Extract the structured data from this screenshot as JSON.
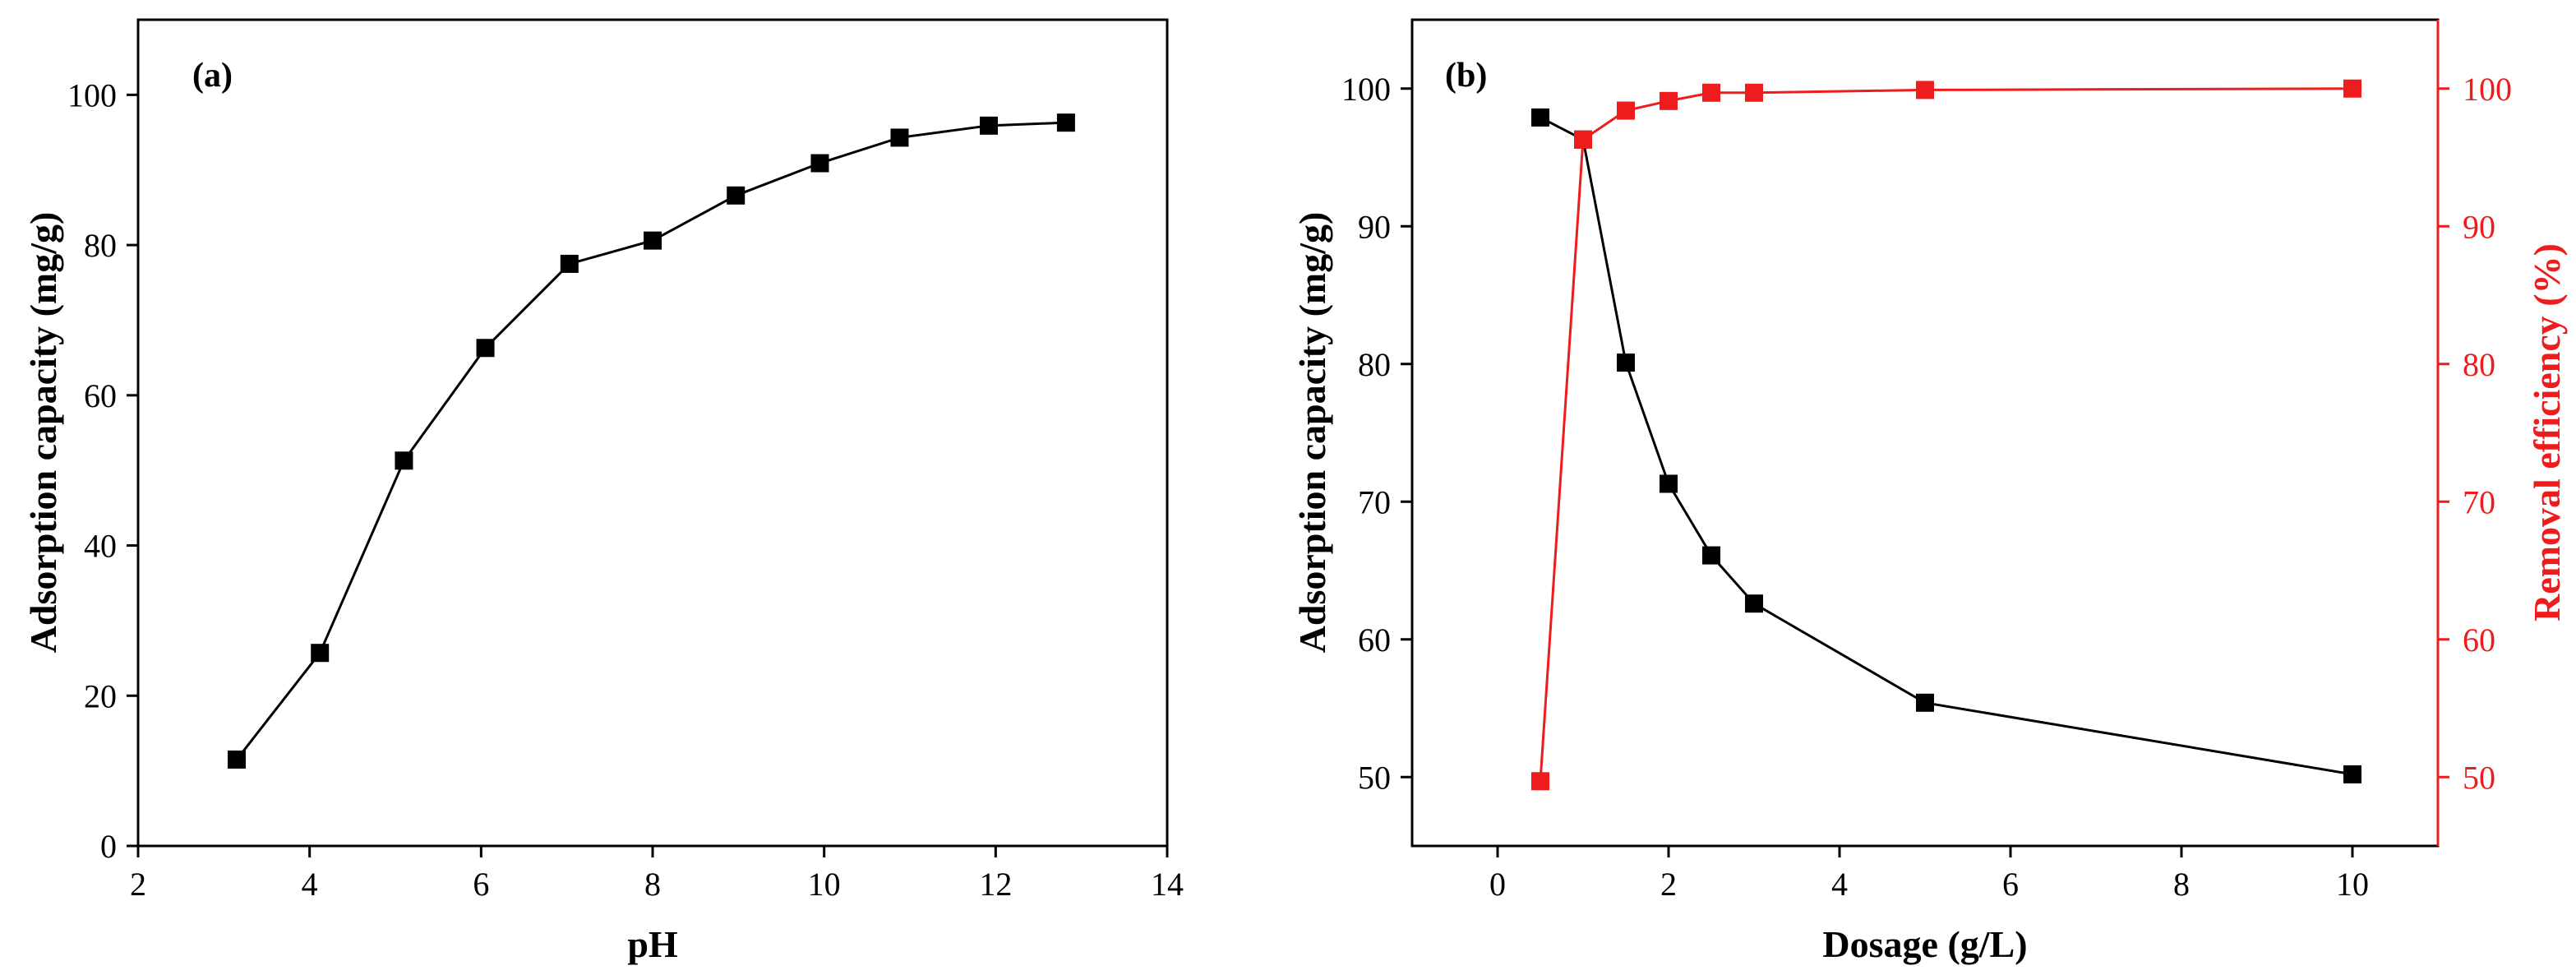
{
  "colors": {
    "black_series": "#000000",
    "red_series": "#ee1c1c",
    "axis": "#000000"
  },
  "chart_data": [
    {
      "panel": "(a)",
      "type": "line",
      "xlabel": "pH",
      "ylabel": "Adsorption capacity (mg/g)",
      "xlim": [
        2,
        14
      ],
      "ylim": [
        0,
        110
      ],
      "xticks": [
        2,
        4,
        6,
        8,
        10,
        12,
        14
      ],
      "yticks": [
        0,
        20,
        40,
        60,
        80,
        100
      ],
      "series": [
        {
          "name": "Adsorption capacity",
          "color": "#000000",
          "marker": "square",
          "x": [
            3.15,
            4.12,
            5.1,
            6.05,
            7.03,
            8.0,
            8.97,
            9.95,
            10.88,
            11.92,
            12.82
          ],
          "y": [
            11.5,
            25.7,
            51.3,
            66.3,
            77.5,
            80.6,
            86.6,
            90.9,
            94.3,
            95.9,
            96.3
          ]
        }
      ]
    },
    {
      "panel": "(b)",
      "type": "line",
      "xlabel": "Dosage (g/L)",
      "ylabel": "Adsorption capacity (mg/g)",
      "y2label": "Removal efficiency (%)",
      "xlim": [
        -1,
        11
      ],
      "ylim": [
        45,
        105
      ],
      "y2lim": [
        45,
        105
      ],
      "xticks": [
        0,
        2,
        4,
        6,
        8,
        10
      ],
      "yticks": [
        50,
        60,
        70,
        80,
        90,
        100
      ],
      "y2ticks": [
        50,
        60,
        70,
        80,
        90,
        100
      ],
      "series": [
        {
          "name": "Adsorption capacity",
          "axis": "left",
          "color": "#000000",
          "marker": "square",
          "x": [
            0.5,
            1.0,
            1.5,
            2.0,
            2.5,
            3.0,
            5.0,
            10.0
          ],
          "y": [
            97.9,
            96.3,
            80.1,
            71.3,
            66.1,
            62.6,
            55.4,
            50.2
          ]
        },
        {
          "name": "Removal efficiency",
          "axis": "right",
          "color": "#ee1c1c",
          "marker": "square",
          "x": [
            0.5,
            1.0,
            1.5,
            2.0,
            2.5,
            3.0,
            5.0,
            10.0
          ],
          "y": [
            49.7,
            96.3,
            98.4,
            99.1,
            99.7,
            99.7,
            99.9,
            100.0
          ]
        }
      ]
    }
  ]
}
